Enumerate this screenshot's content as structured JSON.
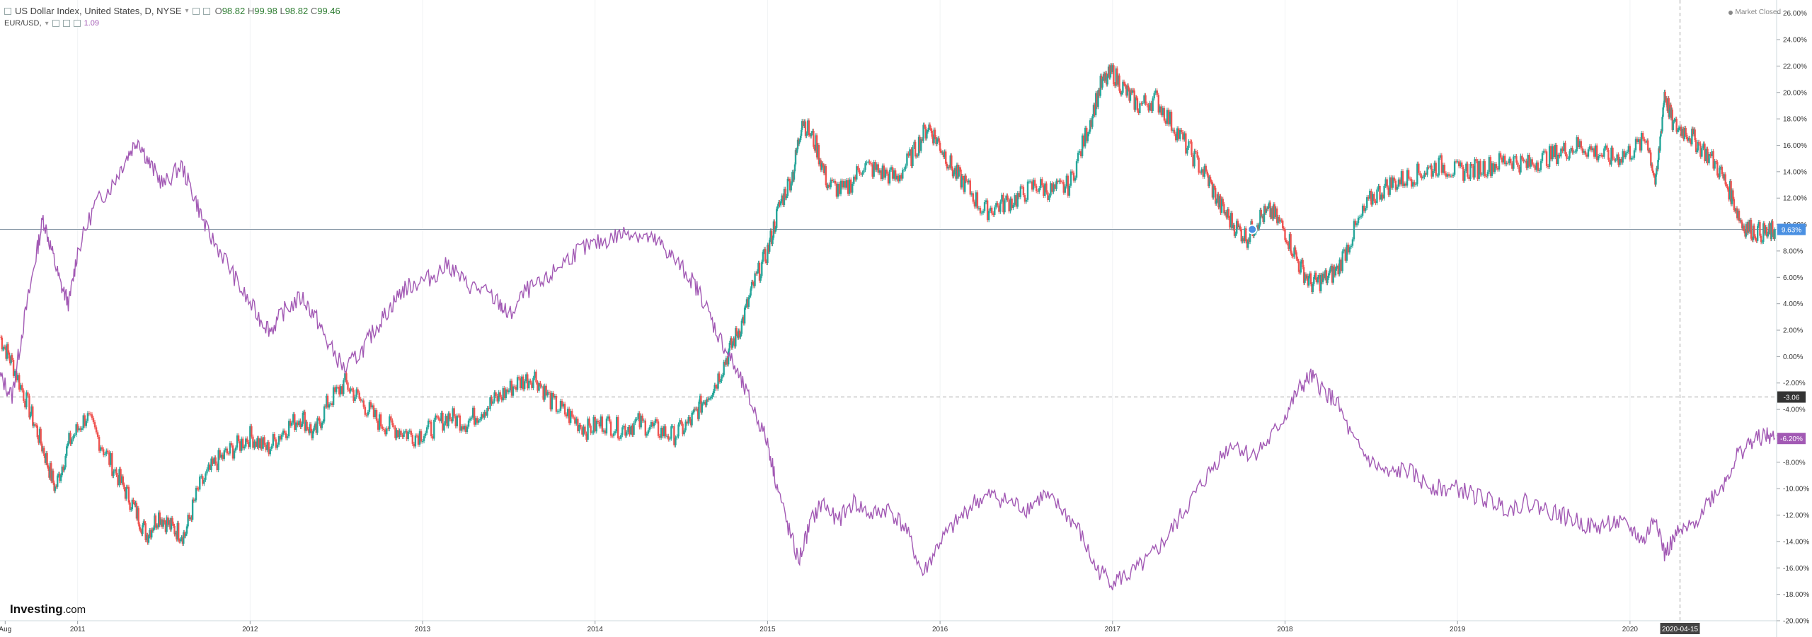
{
  "header": {
    "title": "US Dollar Index, United States, D, NYSE",
    "ohlc": [
      {
        "k": "O",
        "v": "98.82"
      },
      {
        "k": "H",
        "v": "99.98"
      },
      {
        "k": "L",
        "v": "98.82"
      },
      {
        "k": "C",
        "v": "99.46"
      }
    ],
    "compare_symbol": "EUR/USD,",
    "compare_value": "1.09"
  },
  "market_status": "Market Closed",
  "logo": {
    "name": "Investing",
    "suffix": ".com"
  },
  "colors": {
    "up": "#26a69a",
    "down": "#ef5350",
    "dxy": "#2e7d4f",
    "eurusd": "#a259b4",
    "last_price": "#4a90e2",
    "crosshair": "#444444"
  },
  "chart_data": {
    "type": "line",
    "yaxis": {
      "unit": "percent",
      "ylim": [
        -20,
        27
      ],
      "ticks": [
        26,
        24,
        22,
        20,
        18,
        16,
        14,
        12,
        10,
        8,
        6,
        4,
        2,
        0,
        -2,
        -4,
        -6,
        -8,
        -10,
        -12,
        -14,
        -16,
        -18,
        -20
      ],
      "tick_labels": [
        "26.00%",
        "24.00%",
        "22.00%",
        "20.00%",
        "18.00%",
        "16.00%",
        "14.00%",
        "12.00%",
        "10.00%",
        "8.00%",
        "6.00%",
        "4.00%",
        "2.00%",
        "0.00%",
        "-2.00%",
        "-4.00%",
        "-6.00%",
        "-8.00%",
        "-10.00%",
        "-12.00%",
        "-14.00%",
        "-16.00%",
        "-18.00%",
        "-20.00%"
      ]
    },
    "xaxis": {
      "xlim": [
        2010.55,
        2020.85
      ],
      "ticks": [
        {
          "label": "Aug",
          "t": 2010.58
        },
        {
          "label": "2011",
          "t": 2011.0
        },
        {
          "label": "2012",
          "t": 2012.0
        },
        {
          "label": "2013",
          "t": 2013.0
        },
        {
          "label": "2014",
          "t": 2014.0
        },
        {
          "label": "2015",
          "t": 2015.0
        },
        {
          "label": "2016",
          "t": 2016.0
        },
        {
          "label": "2017",
          "t": 2017.0
        },
        {
          "label": "2018",
          "t": 2018.0
        },
        {
          "label": "2019",
          "t": 2019.0
        },
        {
          "label": "2020",
          "t": 2020.0
        }
      ],
      "crosshair_label": "2020-04-15",
      "crosshair_t": 2020.29
    },
    "horizontal_lines": [
      {
        "value": 9.63,
        "label": "9.63%",
        "style": "solid"
      },
      {
        "value": -3.06,
        "label": "-3.06",
        "style": "dashed"
      }
    ],
    "last_value_labels": [
      {
        "series": "US Dollar Index",
        "value": 9.63,
        "label": "9.63%"
      },
      {
        "series": "EUR/USD",
        "value": -6.2,
        "label": "-6.20%"
      }
    ],
    "series": [
      {
        "name": "US Dollar Index",
        "style": "candles",
        "points": [
          [
            2010.55,
            1.5
          ],
          [
            2010.62,
            -0.5
          ],
          [
            2010.72,
            -4.0
          ],
          [
            2010.8,
            -7.0
          ],
          [
            2010.87,
            -10.0
          ],
          [
            2010.95,
            -6.5
          ],
          [
            2011.05,
            -4.5
          ],
          [
            2011.15,
            -7.0
          ],
          [
            2011.25,
            -9.5
          ],
          [
            2011.33,
            -11.5
          ],
          [
            2011.4,
            -13.5
          ],
          [
            2011.47,
            -12.0
          ],
          [
            2011.55,
            -13.0
          ],
          [
            2011.62,
            -13.5
          ],
          [
            2011.7,
            -10.0
          ],
          [
            2011.8,
            -8.0
          ],
          [
            2011.9,
            -7.0
          ],
          [
            2012.0,
            -6.0
          ],
          [
            2012.1,
            -7.0
          ],
          [
            2012.2,
            -5.5
          ],
          [
            2012.3,
            -4.5
          ],
          [
            2012.37,
            -6.0
          ],
          [
            2012.45,
            -3.5
          ],
          [
            2012.55,
            -2.0
          ],
          [
            2012.65,
            -3.5
          ],
          [
            2012.75,
            -5.0
          ],
          [
            2012.85,
            -5.5
          ],
          [
            2012.95,
            -6.0
          ],
          [
            2013.05,
            -5.5
          ],
          [
            2013.15,
            -4.5
          ],
          [
            2013.25,
            -5.0
          ],
          [
            2013.35,
            -4.0
          ],
          [
            2013.45,
            -3.0
          ],
          [
            2013.55,
            -2.0
          ],
          [
            2013.65,
            -1.5
          ],
          [
            2013.75,
            -3.5
          ],
          [
            2013.85,
            -4.5
          ],
          [
            2013.95,
            -5.5
          ],
          [
            2014.05,
            -5.0
          ],
          [
            2014.15,
            -5.5
          ],
          [
            2014.25,
            -5.0
          ],
          [
            2014.35,
            -5.5
          ],
          [
            2014.45,
            -6.0
          ],
          [
            2014.55,
            -5.0
          ],
          [
            2014.62,
            -3.5
          ],
          [
            2014.7,
            -2.0
          ],
          [
            2014.78,
            0.5
          ],
          [
            2014.85,
            2.5
          ],
          [
            2014.92,
            5.5
          ],
          [
            2015.0,
            8.0
          ],
          [
            2015.07,
            11.5
          ],
          [
            2015.15,
            14.0
          ],
          [
            2015.2,
            18.0
          ],
          [
            2015.28,
            16.0
          ],
          [
            2015.35,
            13.0
          ],
          [
            2015.45,
            12.5
          ],
          [
            2015.55,
            14.5
          ],
          [
            2015.65,
            14.0
          ],
          [
            2015.75,
            13.5
          ],
          [
            2015.85,
            15.5
          ],
          [
            2015.93,
            17.5
          ],
          [
            2016.0,
            16.0
          ],
          [
            2016.08,
            14.0
          ],
          [
            2016.15,
            13.0
          ],
          [
            2016.25,
            11.0
          ],
          [
            2016.35,
            11.5
          ],
          [
            2016.45,
            12.0
          ],
          [
            2016.55,
            13.0
          ],
          [
            2016.65,
            12.5
          ],
          [
            2016.75,
            13.0
          ],
          [
            2016.85,
            17.0
          ],
          [
            2016.93,
            20.5
          ],
          [
            2017.0,
            21.5
          ],
          [
            2017.08,
            20.0
          ],
          [
            2017.15,
            19.0
          ],
          [
            2017.25,
            19.5
          ],
          [
            2017.35,
            17.5
          ],
          [
            2017.45,
            15.5
          ],
          [
            2017.55,
            13.5
          ],
          [
            2017.62,
            11.5
          ],
          [
            2017.7,
            10.0
          ],
          [
            2017.78,
            9.0
          ],
          [
            2017.85,
            10.5
          ],
          [
            2017.92,
            11.0
          ],
          [
            2018.0,
            9.5
          ],
          [
            2018.08,
            7.0
          ],
          [
            2018.15,
            5.5
          ],
          [
            2018.22,
            5.8
          ],
          [
            2018.3,
            6.5
          ],
          [
            2018.4,
            9.5
          ],
          [
            2018.5,
            12.0
          ],
          [
            2018.6,
            13.0
          ],
          [
            2018.7,
            13.5
          ],
          [
            2018.8,
            14.0
          ],
          [
            2018.9,
            14.5
          ],
          [
            2019.0,
            14.0
          ],
          [
            2019.1,
            14.2
          ],
          [
            2019.2,
            14.5
          ],
          [
            2019.3,
            15.0
          ],
          [
            2019.4,
            14.5
          ],
          [
            2019.5,
            15.0
          ],
          [
            2019.6,
            15.5
          ],
          [
            2019.7,
            16.0
          ],
          [
            2019.8,
            15.5
          ],
          [
            2019.9,
            15.0
          ],
          [
            2020.0,
            15.5
          ],
          [
            2020.1,
            16.5
          ],
          [
            2020.15,
            13.0
          ],
          [
            2020.2,
            20.0
          ],
          [
            2020.25,
            17.5
          ],
          [
            2020.33,
            17.0
          ],
          [
            2020.4,
            16.0
          ],
          [
            2020.5,
            14.5
          ],
          [
            2020.58,
            12.5
          ],
          [
            2020.65,
            10.0
          ],
          [
            2020.72,
            9.5
          ],
          [
            2020.8,
            9.3
          ],
          [
            2020.84,
            9.63
          ]
        ]
      },
      {
        "name": "EUR/USD",
        "style": "line",
        "points": [
          [
            2010.55,
            -1.5
          ],
          [
            2010.62,
            -3.0
          ],
          [
            2010.68,
            2.0
          ],
          [
            2010.75,
            7.0
          ],
          [
            2010.8,
            10.5
          ],
          [
            2010.85,
            8.0
          ],
          [
            2010.9,
            5.5
          ],
          [
            2010.95,
            4.0
          ],
          [
            2011.0,
            8.0
          ],
          [
            2011.1,
            11.5
          ],
          [
            2011.2,
            13.0
          ],
          [
            2011.28,
            15.0
          ],
          [
            2011.35,
            16.5
          ],
          [
            2011.42,
            14.5
          ],
          [
            2011.5,
            13.0
          ],
          [
            2011.6,
            14.5
          ],
          [
            2011.68,
            12.0
          ],
          [
            2011.75,
            9.5
          ],
          [
            2011.85,
            7.5
          ],
          [
            2011.95,
            5.0
          ],
          [
            2012.05,
            3.0
          ],
          [
            2012.12,
            2.0
          ],
          [
            2012.2,
            3.5
          ],
          [
            2012.3,
            4.5
          ],
          [
            2012.38,
            3.0
          ],
          [
            2012.45,
            1.0
          ],
          [
            2012.55,
            -1.0
          ],
          [
            2012.65,
            0.5
          ],
          [
            2012.72,
            2.0
          ],
          [
            2012.8,
            3.5
          ],
          [
            2012.88,
            5.0
          ],
          [
            2012.95,
            5.5
          ],
          [
            2013.05,
            6.0
          ],
          [
            2013.15,
            7.0
          ],
          [
            2013.25,
            5.5
          ],
          [
            2013.35,
            5.0
          ],
          [
            2013.45,
            4.0
          ],
          [
            2013.5,
            3.0
          ],
          [
            2013.6,
            5.0
          ],
          [
            2013.7,
            5.5
          ],
          [
            2013.8,
            7.0
          ],
          [
            2013.9,
            8.0
          ],
          [
            2014.0,
            8.5
          ],
          [
            2014.1,
            9.0
          ],
          [
            2014.2,
            9.5
          ],
          [
            2014.3,
            9.0
          ],
          [
            2014.38,
            8.5
          ],
          [
            2014.45,
            7.5
          ],
          [
            2014.55,
            6.0
          ],
          [
            2014.62,
            4.5
          ],
          [
            2014.7,
            2.0
          ],
          [
            2014.78,
            0.0
          ],
          [
            2014.85,
            -2.0
          ],
          [
            2014.92,
            -4.0
          ],
          [
            2015.0,
            -6.5
          ],
          [
            2015.05,
            -9.5
          ],
          [
            2015.12,
            -13.0
          ],
          [
            2015.18,
            -15.5
          ],
          [
            2015.25,
            -12.5
          ],
          [
            2015.32,
            -11.0
          ],
          [
            2015.4,
            -12.5
          ],
          [
            2015.5,
            -11.0
          ],
          [
            2015.6,
            -12.0
          ],
          [
            2015.7,
            -11.5
          ],
          [
            2015.8,
            -13.0
          ],
          [
            2015.9,
            -16.5
          ],
          [
            2016.0,
            -14.0
          ],
          [
            2016.1,
            -12.5
          ],
          [
            2016.2,
            -11.0
          ],
          [
            2016.3,
            -10.5
          ],
          [
            2016.4,
            -11.0
          ],
          [
            2016.5,
            -11.5
          ],
          [
            2016.6,
            -10.5
          ],
          [
            2016.7,
            -11.5
          ],
          [
            2016.8,
            -13.0
          ],
          [
            2016.9,
            -16.0
          ],
          [
            2017.0,
            -17.0
          ],
          [
            2017.1,
            -16.5
          ],
          [
            2017.2,
            -15.5
          ],
          [
            2017.3,
            -14.0
          ],
          [
            2017.4,
            -12.0
          ],
          [
            2017.5,
            -10.0
          ],
          [
            2017.6,
            -8.0
          ],
          [
            2017.7,
            -6.5
          ],
          [
            2017.8,
            -7.5
          ],
          [
            2017.9,
            -6.5
          ],
          [
            2018.0,
            -4.5
          ],
          [
            2018.08,
            -2.5
          ],
          [
            2018.15,
            -1.5
          ],
          [
            2018.22,
            -2.5
          ],
          [
            2018.3,
            -3.5
          ],
          [
            2018.4,
            -6.5
          ],
          [
            2018.5,
            -8.0
          ],
          [
            2018.6,
            -9.0
          ],
          [
            2018.7,
            -8.5
          ],
          [
            2018.8,
            -9.5
          ],
          [
            2018.9,
            -10.0
          ],
          [
            2019.0,
            -10.0
          ],
          [
            2019.1,
            -10.5
          ],
          [
            2019.2,
            -11.0
          ],
          [
            2019.3,
            -11.5
          ],
          [
            2019.4,
            -11.0
          ],
          [
            2019.5,
            -11.5
          ],
          [
            2019.6,
            -12.0
          ],
          [
            2019.7,
            -12.5
          ],
          [
            2019.8,
            -13.0
          ],
          [
            2019.9,
            -12.5
          ],
          [
            2020.0,
            -13.0
          ],
          [
            2020.08,
            -14.0
          ],
          [
            2020.15,
            -12.0
          ],
          [
            2020.2,
            -15.0
          ],
          [
            2020.27,
            -13.5
          ],
          [
            2020.35,
            -13.0
          ],
          [
            2020.45,
            -11.0
          ],
          [
            2020.55,
            -9.5
          ],
          [
            2020.62,
            -7.5
          ],
          [
            2020.7,
            -6.5
          ],
          [
            2020.78,
            -6.0
          ],
          [
            2020.84,
            -6.2
          ]
        ]
      }
    ]
  }
}
